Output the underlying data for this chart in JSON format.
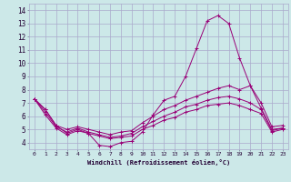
{
  "xlabel": "Windchill (Refroidissement éolien,°C)",
  "bg_color": "#cce8e8",
  "grid_color": "#aaaacc",
  "line_color": "#990077",
  "xlim": [
    -0.5,
    23.5
  ],
  "ylim": [
    3.5,
    14.5
  ],
  "yticks": [
    4,
    5,
    6,
    7,
    8,
    9,
    10,
    11,
    12,
    13,
    14
  ],
  "xticks": [
    0,
    1,
    2,
    3,
    4,
    5,
    6,
    7,
    8,
    9,
    10,
    11,
    12,
    13,
    14,
    15,
    16,
    17,
    18,
    19,
    20,
    21,
    22,
    23
  ],
  "lines": [
    {
      "x": [
        0,
        1,
        2,
        3,
        4,
        5,
        6,
        7,
        8,
        9,
        10,
        11,
        12,
        13,
        14,
        15,
        16,
        17,
        18,
        19,
        20,
        21,
        22,
        23
      ],
      "y": [
        7.3,
        6.5,
        5.3,
        4.7,
        5.0,
        4.7,
        3.8,
        3.7,
        4.0,
        4.1,
        4.8,
        6.1,
        7.2,
        7.5,
        9.0,
        11.1,
        13.2,
        13.6,
        13.0,
        10.4,
        8.3,
        6.6,
        5.0,
        5.1
      ]
    },
    {
      "x": [
        0,
        1,
        2,
        3,
        4,
        5,
        6,
        7,
        8,
        9,
        10,
        11,
        12,
        13,
        14,
        15,
        16,
        17,
        18,
        19,
        20,
        21,
        22,
        23
      ],
      "y": [
        7.3,
        6.5,
        5.3,
        5.0,
        5.2,
        5.0,
        4.8,
        4.6,
        4.8,
        4.9,
        5.5,
        6.0,
        6.5,
        6.8,
        7.2,
        7.5,
        7.8,
        8.1,
        8.3,
        8.0,
        8.3,
        7.0,
        5.2,
        5.3
      ]
    },
    {
      "x": [
        0,
        1,
        2,
        3,
        4,
        5,
        6,
        7,
        8,
        9,
        10,
        11,
        12,
        13,
        14,
        15,
        16,
        17,
        18,
        19,
        20,
        21,
        22,
        23
      ],
      "y": [
        7.3,
        6.3,
        5.2,
        4.8,
        5.1,
        4.8,
        4.6,
        4.4,
        4.5,
        4.7,
        5.2,
        5.6,
        6.0,
        6.3,
        6.7,
        6.9,
        7.2,
        7.4,
        7.5,
        7.3,
        7.0,
        6.5,
        4.9,
        5.1
      ]
    },
    {
      "x": [
        0,
        1,
        2,
        3,
        4,
        5,
        6,
        7,
        8,
        9,
        10,
        11,
        12,
        13,
        14,
        15,
        16,
        17,
        18,
        19,
        20,
        21,
        22,
        23
      ],
      "y": [
        7.3,
        6.1,
        5.1,
        4.6,
        4.9,
        4.7,
        4.5,
        4.3,
        4.4,
        4.5,
        5.0,
        5.3,
        5.7,
        5.9,
        6.3,
        6.5,
        6.8,
        6.9,
        7.0,
        6.8,
        6.5,
        6.2,
        4.8,
        5.0
      ]
    }
  ]
}
